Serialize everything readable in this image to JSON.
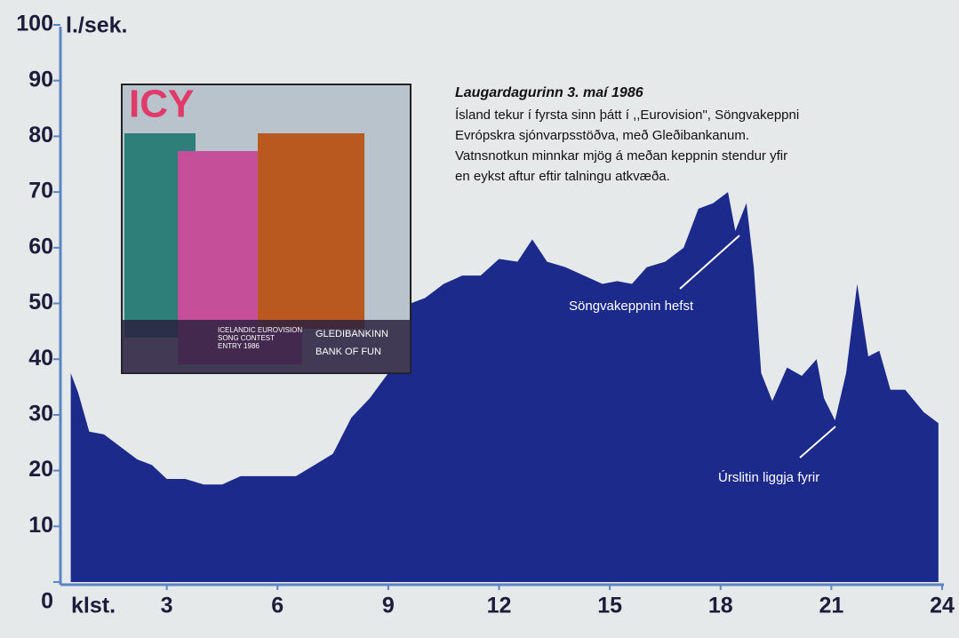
{
  "chart_data": {
    "type": "area",
    "y_unit_label": "l./sek.",
    "x_unit_label": "klst.",
    "color": "#1c2a8c",
    "xlim": [
      0,
      24
    ],
    "xticks": [
      3,
      6,
      9,
      12,
      15,
      18,
      21,
      24
    ],
    "ylim": [
      0,
      100
    ],
    "yticks": [
      0,
      10,
      20,
      30,
      40,
      50,
      60,
      70,
      80,
      90,
      100
    ],
    "x": [
      0.4,
      0.6,
      0.9,
      1.3,
      1.5,
      1.8,
      2.2,
      2.6,
      3,
      3.5,
      4,
      4.5,
      5,
      5.5,
      6,
      6.5,
      7,
      7.5,
      8,
      8.5,
      9,
      9.3,
      9.6,
      10,
      10.5,
      11,
      11.5,
      12,
      12.5,
      12.9,
      13.3,
      13.8,
      14.3,
      14.8,
      15.2,
      15.6,
      16,
      16.5,
      17,
      17.4,
      17.8,
      18.2,
      18.4,
      18.7,
      18.9,
      19.1,
      19.4,
      19.8,
      20.2,
      20.6,
      20.8,
      21.1,
      21.4,
      21.7,
      22,
      22.3,
      22.6,
      23,
      23.5,
      23.9
    ],
    "values": [
      37.5,
      34,
      27,
      26.5,
      25.5,
      24,
      22,
      21,
      18.5,
      18.5,
      17.5,
      17.5,
      19,
      19,
      19,
      19,
      21,
      23,
      29.5,
      33,
      37.5,
      49,
      50,
      51,
      53.5,
      55,
      55,
      58,
      57.5,
      61.5,
      57.5,
      56.5,
      55,
      53.5,
      54,
      53.5,
      56.5,
      57.5,
      60,
      67,
      68,
      70,
      63,
      68,
      56.5,
      37.5,
      32.5,
      38.5,
      37,
      40,
      33,
      29,
      37.5,
      53.5,
      40.5,
      41.5,
      34.5,
      34.5,
      30.5,
      28.5
    ],
    "description_title": "Laugardagurinn 3. maí 1986",
    "description_lines": [
      "Ísland tekur í fyrsta sinn þátt í ,,Eurovision\", Söngvakeppni",
      "Evrópskra sjónvarpsstöðva, með Gleðibankanum.",
      "Vatnsnotkun minnkar mjög á meðan keppnin stendur yfir",
      "en eykst aftur eftir talningu atkvæða."
    ],
    "annotations": [
      {
        "text": "Söngvakeppnin hefst"
      },
      {
        "text": "Úrslitin liggja fyrir"
      }
    ],
    "album": {
      "title": "ICY",
      "caption_left": [
        "ICELANDIC EUROVISION",
        "SONG CONTEST",
        "ENTRY 1986"
      ],
      "caption_right": [
        "GLEDIBANKINN",
        "BANK OF FUN"
      ]
    }
  }
}
